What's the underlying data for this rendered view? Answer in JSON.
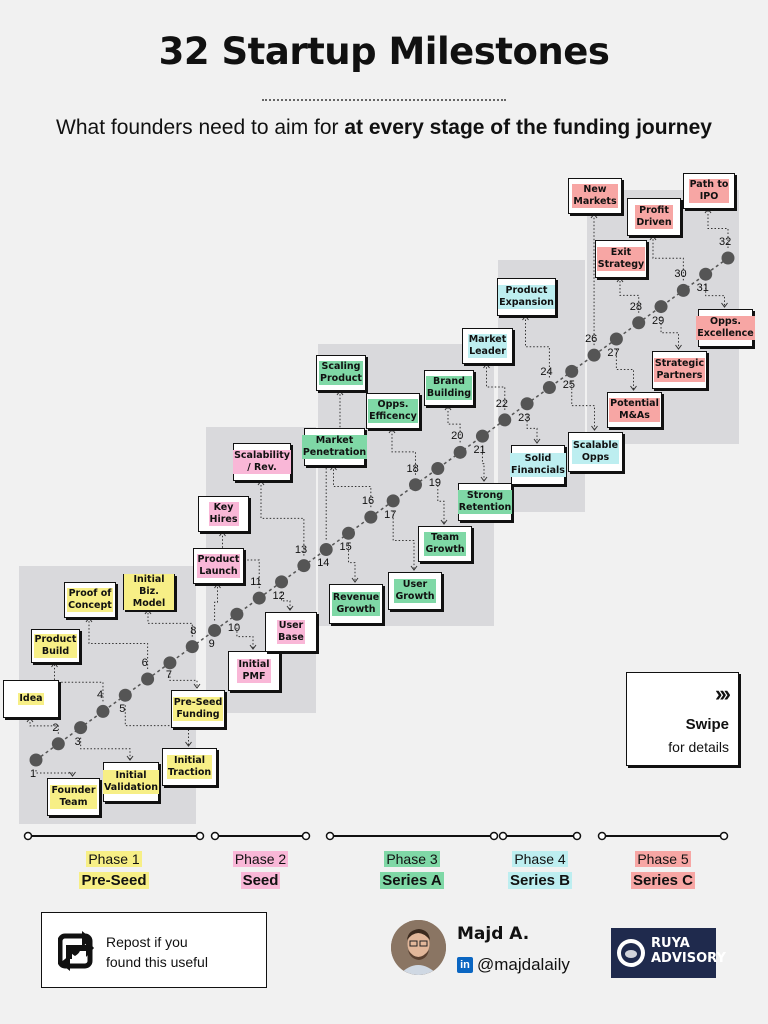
{
  "header": {
    "title": "32 Startup Milestones",
    "subtitle_plain": "What founders need to aim for ",
    "subtitle_bold": "at every stage of the funding journey"
  },
  "colors": {
    "pre_seed": "#f7ef86",
    "seed": "#f9b7d7",
    "series_a": "#7fd8a6",
    "series_b": "#bdeef0",
    "series_c": "#f7a6a4",
    "band": "#d9d9dc",
    "dot": "#555555"
  },
  "milestones": [
    {
      "n": "1",
      "label": "Founder\nTeam",
      "phase": "p1"
    },
    {
      "n": "2",
      "label": "Idea",
      "phase": "p1"
    },
    {
      "n": "3",
      "label": "Initial\nValidation",
      "phase": "p1"
    },
    {
      "n": "4",
      "label": "Product\nBuild",
      "phase": "p1"
    },
    {
      "n": "5",
      "label": "Initial\nTraction",
      "phase": "p1"
    },
    {
      "n": "6",
      "label": "Proof of\nConcept",
      "phase": "p1"
    },
    {
      "n": "7",
      "label": "Pre-Seed\nFunding",
      "phase": "p1"
    },
    {
      "n": "8",
      "label": "Initial Biz.\nModel",
      "phase": "p1"
    },
    {
      "n": "9",
      "label": "Product\nLaunch",
      "phase": "p2"
    },
    {
      "n": "10",
      "label": "Initial\nPMF",
      "phase": "p2"
    },
    {
      "n": "11",
      "label": "Key\nHires",
      "phase": "p2"
    },
    {
      "n": "12",
      "label": "User\nBase",
      "phase": "p2"
    },
    {
      "n": "13",
      "label": "Scalability\n/ Rev.",
      "phase": "p2"
    },
    {
      "n": "14",
      "label": "Scaling\nProduct",
      "phase": "p3"
    },
    {
      "n": "15",
      "label": "Revenue\nGrowth",
      "phase": "p3"
    },
    {
      "n": "16",
      "label": "Market\nPenetration",
      "phase": "p3"
    },
    {
      "n": "17",
      "label": "User\nGrowth",
      "phase": "p3"
    },
    {
      "n": "18",
      "label": "Opps.\nEfficency",
      "phase": "p3"
    },
    {
      "n": "19",
      "label": "Team\nGrowth",
      "phase": "p3"
    },
    {
      "n": "20",
      "label": "Brand\nBuilding",
      "phase": "p3"
    },
    {
      "n": "21",
      "label": "Strong\nRetention",
      "phase": "p3"
    },
    {
      "n": "22",
      "label": "Market\nLeader",
      "phase": "p4"
    },
    {
      "n": "23",
      "label": "Solid\nFinancials",
      "phase": "p4"
    },
    {
      "n": "24",
      "label": "Product\nExpansion",
      "phase": "p4"
    },
    {
      "n": "25",
      "label": "Scalable\nOpps",
      "phase": "p4"
    },
    {
      "n": "26",
      "label": "New\nMarkets",
      "phase": "p5"
    },
    {
      "n": "27",
      "label": "Potential\nM&As",
      "phase": "p5"
    },
    {
      "n": "28",
      "label": "Exit\nStrategy",
      "phase": "p5"
    },
    {
      "n": "29",
      "label": "Strategic\nPartners",
      "phase": "p5"
    },
    {
      "n": "30",
      "label": "Profit\nDriven",
      "phase": "p5"
    },
    {
      "n": "31",
      "label": "Opps.\nExcellence",
      "phase": "p5"
    },
    {
      "n": "32",
      "label": "Path to\nIPO",
      "phase": "p5"
    }
  ],
  "phases": [
    {
      "name": "Phase 1",
      "stage": "Pre-Seed",
      "color": "#f7ef86"
    },
    {
      "name": "Phase 2",
      "stage": "Seed",
      "color": "#f9b7d7"
    },
    {
      "name": "Phase 3",
      "stage": "Series A",
      "color": "#7fd8a6"
    },
    {
      "name": "Phase 4",
      "stage": "Series B",
      "color": "#bdeef0"
    },
    {
      "name": "Phase 5",
      "stage": "Series C",
      "color": "#f7a6a4"
    }
  ],
  "swipe": {
    "arrows": "›››",
    "title": "Swipe",
    "subtitle": "for details"
  },
  "repost": {
    "line1": "Repost if you",
    "line2": "found this useful",
    "icon": "repost-icon"
  },
  "author": {
    "name": "Majd A.",
    "handle": "@majdalaily",
    "network_icon": "linkedin-icon",
    "network_letters": "in"
  },
  "logo": {
    "line1": "RUYA",
    "line2": "ADVISORY"
  }
}
